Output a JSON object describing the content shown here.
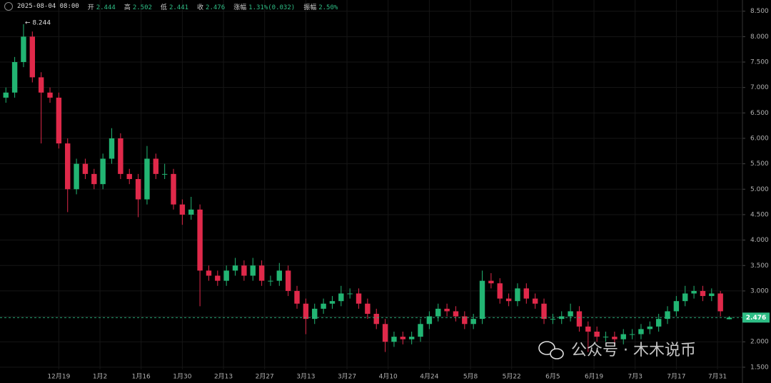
{
  "chart_data": {
    "type": "candlestick",
    "header": {
      "time": "2025-08-04 08:00",
      "items": [
        {
          "label": "开",
          "value": "2.444"
        },
        {
          "label": "高",
          "value": "2.502"
        },
        {
          "label": "低",
          "value": "2.441"
        },
        {
          "label": "收",
          "value": "2.476"
        },
        {
          "label": "涨幅",
          "value": "1.31%(0.032)"
        },
        {
          "label": "振幅",
          "value": "2.50%"
        }
      ]
    },
    "up_color": "#22b573",
    "down_color": "#e0294a",
    "grid": true,
    "xlim": [
      0,
      252
    ],
    "xticks": [
      {
        "value": 20,
        "label": "12月19"
      },
      {
        "value": 34,
        "label": "1月2"
      },
      {
        "value": 48,
        "label": "1月16"
      },
      {
        "value": 62,
        "label": "1月30"
      },
      {
        "value": 76,
        "label": "2月13"
      },
      {
        "value": 90,
        "label": "2月27"
      },
      {
        "value": 104,
        "label": "3月13"
      },
      {
        "value": 118,
        "label": "3月27"
      },
      {
        "value": 132,
        "label": "4月10"
      },
      {
        "value": 146,
        "label": "4月24"
      },
      {
        "value": 160,
        "label": "5月8"
      },
      {
        "value": 174,
        "label": "5月22"
      },
      {
        "value": 188,
        "label": "6月5"
      },
      {
        "value": 202,
        "label": "6月19"
      },
      {
        "value": 216,
        "label": "7月3"
      },
      {
        "value": 230,
        "label": "7月17"
      },
      {
        "value": 244,
        "label": "7月31"
      }
    ],
    "ylim": [
      1.19,
      8.72
    ],
    "yticks": [
      {
        "value": 1.5,
        "label": "1.500"
      },
      {
        "value": 2,
        "label": "2.000"
      },
      {
        "value": 2.5,
        "label": "2.500"
      },
      {
        "value": 3,
        "label": "3.000"
      },
      {
        "value": 3.5,
        "label": "3.500"
      },
      {
        "value": 4,
        "label": "4.000"
      },
      {
        "value": 4.5,
        "label": "4.500"
      },
      {
        "value": 5,
        "label": "5.000"
      },
      {
        "value": 5.5,
        "label": "5.500"
      },
      {
        "value": 6,
        "label": "6.000"
      },
      {
        "value": 6.5,
        "label": "6.500"
      },
      {
        "value": 7,
        "label": "7.000"
      },
      {
        "value": 7.5,
        "label": "7.500"
      },
      {
        "value": 8,
        "label": "8.000"
      },
      {
        "value": 8.5,
        "label": "8.500"
      }
    ],
    "x": [
      2,
      5,
      8,
      11,
      14,
      17,
      20,
      23,
      26,
      29,
      32,
      35,
      38,
      41,
      44,
      47,
      50,
      53,
      56,
      59,
      62,
      65,
      68,
      71,
      74,
      77,
      80,
      83,
      86,
      89,
      92,
      95,
      98,
      101,
      104,
      107,
      110,
      113,
      116,
      119,
      122,
      125,
      128,
      131,
      134,
      137,
      140,
      143,
      146,
      149,
      152,
      155,
      158,
      161,
      164,
      167,
      170,
      173,
      176,
      179,
      182,
      185,
      188,
      191,
      194,
      197,
      200,
      203,
      206,
      209,
      212,
      215,
      218,
      221,
      224,
      227,
      230,
      233,
      236,
      239,
      242,
      245,
      248
    ],
    "ohlc": [
      [
        6.8,
        7.0,
        6.7,
        6.9
      ],
      [
        6.9,
        7.6,
        6.8,
        7.5
      ],
      [
        7.5,
        8.244,
        7.4,
        8.0
      ],
      [
        8.0,
        8.1,
        7.1,
        7.2
      ],
      [
        7.2,
        7.3,
        5.9,
        6.9
      ],
      [
        6.9,
        7.0,
        6.7,
        6.8
      ],
      [
        6.8,
        6.9,
        5.8,
        5.9
      ],
      [
        5.9,
        6.0,
        4.55,
        5.0
      ],
      [
        5.0,
        5.6,
        4.9,
        5.5
      ],
      [
        5.5,
        5.6,
        5.2,
        5.3
      ],
      [
        5.3,
        5.4,
        5.0,
        5.1
      ],
      [
        5.1,
        5.7,
        5.0,
        5.6
      ],
      [
        5.6,
        6.2,
        5.5,
        6.0
      ],
      [
        6.0,
        6.1,
        5.2,
        5.3
      ],
      [
        5.3,
        5.4,
        5.1,
        5.2
      ],
      [
        5.2,
        5.3,
        4.45,
        4.8
      ],
      [
        4.8,
        5.85,
        4.7,
        5.6
      ],
      [
        5.6,
        5.7,
        5.2,
        5.3
      ],
      [
        5.3,
        5.5,
        5.2,
        5.3
      ],
      [
        5.3,
        5.4,
        4.6,
        4.7
      ],
      [
        4.7,
        4.8,
        4.3,
        4.5
      ],
      [
        4.5,
        4.85,
        4.4,
        4.6
      ],
      [
        4.6,
        4.7,
        2.7,
        3.4
      ],
      [
        3.4,
        3.5,
        3.2,
        3.3
      ],
      [
        3.3,
        3.4,
        3.1,
        3.2
      ],
      [
        3.2,
        3.5,
        3.1,
        3.4
      ],
      [
        3.4,
        3.65,
        3.3,
        3.5
      ],
      [
        3.5,
        3.6,
        3.2,
        3.3
      ],
      [
        3.3,
        3.65,
        3.2,
        3.5
      ],
      [
        3.5,
        3.6,
        3.1,
        3.2
      ],
      [
        3.2,
        3.3,
        3.1,
        3.2
      ],
      [
        3.2,
        3.55,
        3.1,
        3.4
      ],
      [
        3.4,
        3.5,
        2.9,
        3.0
      ],
      [
        3.0,
        3.1,
        2.65,
        2.75
      ],
      [
        2.75,
        2.85,
        2.15,
        2.45
      ],
      [
        2.45,
        2.75,
        2.35,
        2.65
      ],
      [
        2.65,
        2.85,
        2.55,
        2.75
      ],
      [
        2.75,
        2.9,
        2.65,
        2.8
      ],
      [
        2.8,
        3.1,
        2.7,
        2.95
      ],
      [
        2.95,
        3.05,
        2.85,
        2.95
      ],
      [
        2.95,
        3.05,
        2.65,
        2.75
      ],
      [
        2.75,
        2.85,
        2.45,
        2.55
      ],
      [
        2.55,
        2.65,
        2.25,
        2.35
      ],
      [
        2.35,
        2.45,
        1.8,
        2.0
      ],
      [
        2.0,
        2.2,
        1.9,
        2.1
      ],
      [
        2.1,
        2.2,
        1.95,
        2.05
      ],
      [
        2.05,
        2.2,
        1.95,
        2.1
      ],
      [
        2.1,
        2.45,
        2.0,
        2.35
      ],
      [
        2.35,
        2.6,
        2.25,
        2.5
      ],
      [
        2.5,
        2.75,
        2.4,
        2.65
      ],
      [
        2.65,
        2.75,
        2.5,
        2.6
      ],
      [
        2.6,
        2.7,
        2.4,
        2.5
      ],
      [
        2.5,
        2.6,
        2.25,
        2.35
      ],
      [
        2.35,
        2.55,
        2.25,
        2.45
      ],
      [
        2.45,
        3.4,
        2.35,
        3.2
      ],
      [
        3.2,
        3.35,
        3.05,
        3.15
      ],
      [
        3.15,
        3.25,
        2.75,
        2.85
      ],
      [
        2.85,
        2.95,
        2.7,
        2.8
      ],
      [
        2.8,
        3.15,
        2.7,
        3.05
      ],
      [
        3.05,
        3.15,
        2.75,
        2.85
      ],
      [
        2.85,
        2.95,
        2.65,
        2.75
      ],
      [
        2.75,
        2.85,
        2.35,
        2.45
      ],
      [
        2.45,
        2.55,
        2.35,
        2.45
      ],
      [
        2.45,
        2.6,
        2.35,
        2.5
      ],
      [
        2.5,
        2.75,
        2.4,
        2.6
      ],
      [
        2.6,
        2.7,
        2.2,
        2.3
      ],
      [
        2.3,
        2.4,
        1.8,
        2.2
      ],
      [
        2.2,
        2.3,
        2.0,
        2.1
      ],
      [
        2.1,
        2.2,
        2.0,
        2.1
      ],
      [
        2.1,
        2.2,
        1.95,
        2.05
      ],
      [
        2.05,
        2.25,
        1.95,
        2.15
      ],
      [
        2.15,
        2.25,
        2.05,
        2.15
      ],
      [
        2.15,
        2.35,
        2.05,
        2.25
      ],
      [
        2.25,
        2.4,
        2.15,
        2.3
      ],
      [
        2.3,
        2.55,
        2.2,
        2.45
      ],
      [
        2.45,
        2.7,
        2.35,
        2.6
      ],
      [
        2.6,
        2.9,
        2.5,
        2.8
      ],
      [
        2.8,
        3.1,
        2.7,
        2.95
      ],
      [
        2.95,
        3.1,
        2.85,
        3.0
      ],
      [
        3.0,
        3.1,
        2.8,
        2.9
      ],
      [
        2.9,
        3.05,
        2.8,
        2.95
      ],
      [
        2.95,
        3.0,
        2.5,
        2.6
      ],
      [
        2.444,
        2.502,
        2.441,
        2.476
      ]
    ],
    "max_annotation": "← 8.244",
    "last_price": {
      "value": 2.476,
      "label": "2.476"
    },
    "watermark": "公众号 · 木木说币"
  }
}
